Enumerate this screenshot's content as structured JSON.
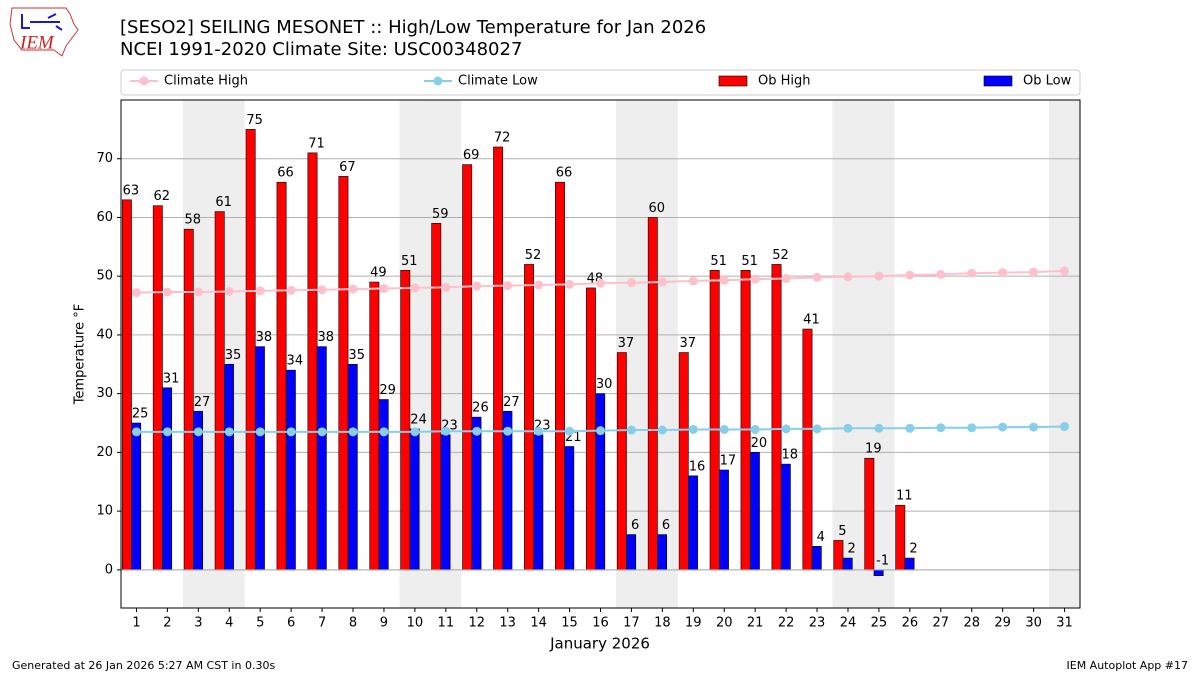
{
  "logo_text": "IEM",
  "footer_left": "Generated at 26 Jan 2026 5:27 AM CST in 0.30s",
  "footer_right": "IEM Autoplot App #17",
  "chart_data": {
    "type": "bar",
    "title": "[SESO2] SEILING MESONET :: High/Low Temperature for Jan 2026",
    "subtitle": "NCEI 1991-2020 Climate Site: USC00348027",
    "x_label": "January 2026",
    "y_label": "Temperature °F",
    "x": [
      1,
      2,
      3,
      4,
      5,
      6,
      7,
      8,
      9,
      10,
      11,
      12,
      13,
      14,
      15,
      16,
      17,
      18,
      19,
      20,
      21,
      22,
      23,
      24,
      25,
      26,
      27,
      28,
      29,
      30,
      31
    ],
    "xlim": [
      0.5,
      31.5
    ],
    "xticks": [
      1,
      2,
      3,
      4,
      5,
      6,
      7,
      8,
      9,
      10,
      11,
      12,
      13,
      14,
      15,
      16,
      17,
      18,
      19,
      20,
      21,
      22,
      23,
      24,
      25,
      26,
      27,
      28,
      29,
      30,
      31
    ],
    "ylim": [
      -6.5,
      80
    ],
    "yticks": [
      0,
      10,
      20,
      30,
      40,
      50,
      60,
      70
    ],
    "grid": true,
    "shaded_days": [
      3,
      4,
      10,
      11,
      17,
      18,
      24,
      25,
      31
    ],
    "shade_color": "#eeeeee",
    "legend": "top",
    "series": [
      {
        "name": "Climate High",
        "type": "line",
        "color": "#ffc0cb",
        "values": [
          47.2,
          47.3,
          47.3,
          47.4,
          47.5,
          47.6,
          47.7,
          47.8,
          47.9,
          48.0,
          48.1,
          48.3,
          48.4,
          48.5,
          48.6,
          48.8,
          48.9,
          49.0,
          49.2,
          49.3,
          49.5,
          49.6,
          49.8,
          49.9,
          50.0,
          50.2,
          50.3,
          50.5,
          50.6,
          50.7,
          50.9
        ]
      },
      {
        "name": "Climate Low",
        "type": "line",
        "color": "#87ceeb",
        "values": [
          23.5,
          23.5,
          23.5,
          23.5,
          23.5,
          23.5,
          23.5,
          23.5,
          23.5,
          23.5,
          23.6,
          23.6,
          23.6,
          23.6,
          23.6,
          23.7,
          23.8,
          23.8,
          23.9,
          23.9,
          23.9,
          24.0,
          24.0,
          24.1,
          24.1,
          24.1,
          24.2,
          24.2,
          24.3,
          24.3,
          24.4
        ]
      },
      {
        "name": "Ob High",
        "type": "bar",
        "color": "#ff0000",
        "values": [
          63,
          62,
          58,
          61,
          75,
          66,
          71,
          67,
          49,
          51,
          59,
          69,
          72,
          52,
          66,
          48,
          37,
          60,
          37,
          51,
          51,
          52,
          41,
          5,
          19,
          11,
          null,
          null,
          null,
          null,
          null
        ]
      },
      {
        "name": "Ob Low",
        "type": "bar",
        "color": "#0000ff",
        "values": [
          25,
          31,
          27,
          35,
          38,
          34,
          38,
          35,
          29,
          24,
          23,
          26,
          27,
          23,
          21,
          30,
          6,
          6,
          16,
          17,
          20,
          18,
          4,
          2,
          -1,
          2,
          null,
          null,
          null,
          null,
          null
        ]
      }
    ]
  }
}
